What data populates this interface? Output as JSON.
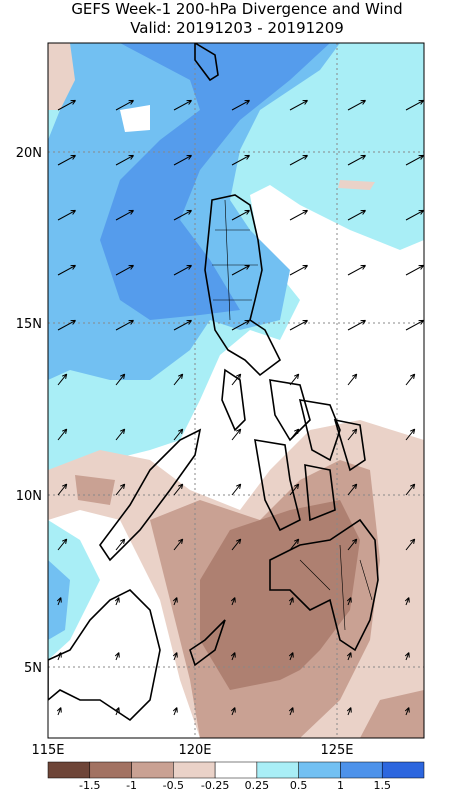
{
  "header": {
    "title": "GEFS Week-1 200-hPa Divergence and Wind",
    "valid": "Valid: 20191203 - 20191209"
  },
  "axes": {
    "x_labels": [
      "115E",
      "120E",
      "125E"
    ],
    "y_labels": [
      "20N",
      "15N",
      "10N",
      "5N"
    ]
  },
  "colorbar": {
    "levels": [
      -1.5,
      -1,
      -0.5,
      -0.25,
      0.25,
      0.5,
      1,
      1.5
    ],
    "colors": [
      "#6e4538",
      "#a27262",
      "#c9a193",
      "#ead2c8",
      "#ffffff",
      "#a9eef6",
      "#72c0f2",
      "#4d92ea",
      "#2c66de"
    ]
  }
}
